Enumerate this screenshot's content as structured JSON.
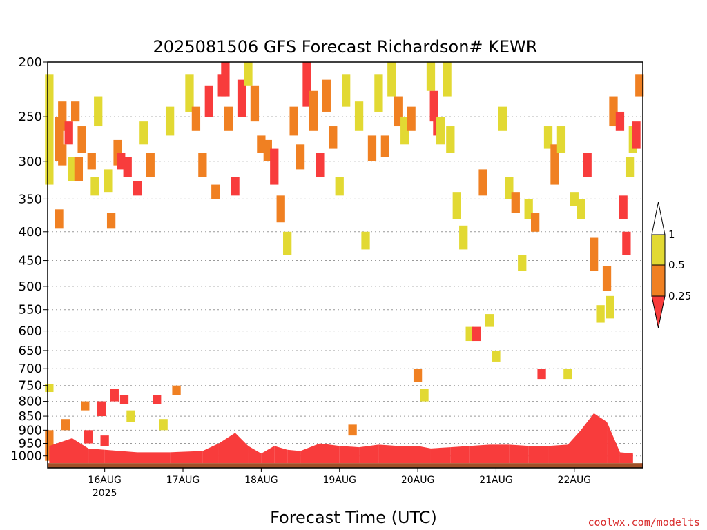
{
  "chart_data": {
    "type": "heatmap",
    "title": "2025081506 GFS Forecast Richardson# KEWR",
    "xlabel": "Forecast Time (UTC)",
    "ylabel": "",
    "y_scale": "log",
    "y_ticks": [
      200,
      250,
      300,
      350,
      400,
      450,
      500,
      550,
      600,
      650,
      700,
      750,
      800,
      850,
      900,
      950,
      1000
    ],
    "ylim": [
      1050,
      200
    ],
    "x_ticks": [
      "16AUG",
      "17AUG",
      "18AUG",
      "19AUG",
      "20AUG",
      "21AUG",
      "22AUG"
    ],
    "x_tick_year": "2025",
    "x_tick_sublabel_index": 0,
    "x_range_hours": [
      -17.5,
      165
    ],
    "grid": true,
    "colorbar": {
      "levels": [
        "1",
        "0.5",
        "0.25"
      ],
      "colors": {
        "over_1": "#ffffff",
        "0.5-1": "#e2d933",
        "0.25-0.5": "#f08022",
        "under_0.25": "#f83c3c"
      }
    },
    "surface_color": "#a05028",
    "value_classes": [
      "0.5-1",
      "0.25-0.5",
      "<0.25"
    ],
    "cells": [
      {
        "t": -17,
        "p": [
          210,
          300
        ],
        "c": "0.5-1"
      },
      {
        "t": -17,
        "p": [
          300,
          330
        ],
        "c": "0.5-1"
      },
      {
        "t": -17,
        "p": [
          745,
          770
        ],
        "c": "0.5-1"
      },
      {
        "t": -17,
        "p": [
          900,
          1020
        ],
        "c": "0.25-0.5"
      },
      {
        "t": -14,
        "p": [
          250,
          300
        ],
        "c": "0.25-0.5"
      },
      {
        "t": -14,
        "p": [
          365,
          395
        ],
        "c": "0.25-0.5"
      },
      {
        "t": -13,
        "p": [
          235,
          265
        ],
        "c": "0.25-0.5"
      },
      {
        "t": -13,
        "p": [
          280,
          305
        ],
        "c": "0.25-0.5"
      },
      {
        "t": -12,
        "p": [
          860,
          900
        ],
        "c": "0.25-0.5"
      },
      {
        "t": -11,
        "p": [
          255,
          280
        ],
        "c": "<0.25"
      },
      {
        "t": -10,
        "p": [
          295,
          325
        ],
        "c": "0.5-1"
      },
      {
        "t": -9,
        "p": [
          235,
          255
        ],
        "c": "0.25-0.5"
      },
      {
        "t": -8,
        "p": [
          295,
          325
        ],
        "c": "0.25-0.5"
      },
      {
        "t": -7,
        "p": [
          260,
          290
        ],
        "c": "0.25-0.5"
      },
      {
        "t": -6,
        "p": [
          800,
          830
        ],
        "c": "0.25-0.5"
      },
      {
        "t": -5,
        "p": [
          900,
          950
        ],
        "c": "<0.25"
      },
      {
        "t": -4,
        "p": [
          290,
          310
        ],
        "c": "0.25-0.5"
      },
      {
        "t": -3,
        "p": [
          320,
          345
        ],
        "c": "0.5-1"
      },
      {
        "t": -2,
        "p": [
          230,
          260
        ],
        "c": "0.5-1"
      },
      {
        "t": -1,
        "p": [
          800,
          850
        ],
        "c": "<0.25"
      },
      {
        "t": 0,
        "p": [
          920,
          960
        ],
        "c": "<0.25"
      },
      {
        "t": 1,
        "p": [
          310,
          340
        ],
        "c": "0.5-1"
      },
      {
        "t": 2,
        "p": [
          370,
          395
        ],
        "c": "0.25-0.5"
      },
      {
        "t": 3,
        "p": [
          760,
          800
        ],
        "c": "<0.25"
      },
      {
        "t": 4,
        "p": [
          275,
          305
        ],
        "c": "0.25-0.5"
      },
      {
        "t": 5,
        "p": [
          290,
          310
        ],
        "c": "<0.25"
      },
      {
        "t": 6,
        "p": [
          780,
          810
        ],
        "c": "<0.25"
      },
      {
        "t": 7,
        "p": [
          295,
          320
        ],
        "c": "<0.25"
      },
      {
        "t": 8,
        "p": [
          830,
          870
        ],
        "c": "0.5-1"
      },
      {
        "t": 10,
        "p": [
          325,
          345
        ],
        "c": "<0.25"
      },
      {
        "t": 12,
        "p": [
          255,
          280
        ],
        "c": "0.5-1"
      },
      {
        "t": 14,
        "p": [
          290,
          320
        ],
        "c": "0.25-0.5"
      },
      {
        "t": 16,
        "p": [
          780,
          810
        ],
        "c": "<0.25"
      },
      {
        "t": 18,
        "p": [
          860,
          900
        ],
        "c": "0.5-1"
      },
      {
        "t": 20,
        "p": [
          240,
          270
        ],
        "c": "0.5-1"
      },
      {
        "t": 22,
        "p": [
          750,
          780
        ],
        "c": "0.25-0.5"
      },
      {
        "t": 26,
        "p": [
          210,
          245
        ],
        "c": "0.5-1"
      },
      {
        "t": 28,
        "p": [
          240,
          265
        ],
        "c": "0.25-0.5"
      },
      {
        "t": 30,
        "p": [
          290,
          320
        ],
        "c": "0.25-0.5"
      },
      {
        "t": 32,
        "p": [
          220,
          250
        ],
        "c": "<0.25"
      },
      {
        "t": 34,
        "p": [
          330,
          350
        ],
        "c": "0.25-0.5"
      },
      {
        "t": 36,
        "p": [
          210,
          230
        ],
        "c": "<0.25"
      },
      {
        "t": 37,
        "p": [
          200,
          230
        ],
        "c": "<0.25"
      },
      {
        "t": 38,
        "p": [
          240,
          265
        ],
        "c": "0.25-0.5"
      },
      {
        "t": 40,
        "p": [
          320,
          345
        ],
        "c": "<0.25"
      },
      {
        "t": 42,
        "p": [
          215,
          250
        ],
        "c": "<0.25"
      },
      {
        "t": 44,
        "p": [
          200,
          220
        ],
        "c": "0.5-1"
      },
      {
        "t": 46,
        "p": [
          220,
          255
        ],
        "c": "0.25-0.5"
      },
      {
        "t": 48,
        "p": [
          270,
          290
        ],
        "c": "0.25-0.5"
      },
      {
        "t": 50,
        "p": [
          275,
          300
        ],
        "c": "0.25-0.5"
      },
      {
        "t": 52,
        "p": [
          285,
          330
        ],
        "c": "<0.25"
      },
      {
        "t": 54,
        "p": [
          345,
          385
        ],
        "c": "0.25-0.5"
      },
      {
        "t": 56,
        "p": [
          400,
          440
        ],
        "c": "0.5-1"
      },
      {
        "t": 58,
        "p": [
          240,
          270
        ],
        "c": "0.25-0.5"
      },
      {
        "t": 60,
        "p": [
          280,
          310
        ],
        "c": "0.25-0.5"
      },
      {
        "t": 62,
        "p": [
          200,
          240
        ],
        "c": "<0.25"
      },
      {
        "t": 64,
        "p": [
          225,
          265
        ],
        "c": "0.25-0.5"
      },
      {
        "t": 66,
        "p": [
          290,
          320
        ],
        "c": "<0.25"
      },
      {
        "t": 68,
        "p": [
          215,
          245
        ],
        "c": "0.25-0.5"
      },
      {
        "t": 70,
        "p": [
          260,
          285
        ],
        "c": "0.25-0.5"
      },
      {
        "t": 72,
        "p": [
          320,
          345
        ],
        "c": "0.5-1"
      },
      {
        "t": 74,
        "p": [
          210,
          240
        ],
        "c": "0.5-1"
      },
      {
        "t": 76,
        "p": [
          880,
          920
        ],
        "c": "0.25-0.5"
      },
      {
        "t": 78,
        "p": [
          235,
          265
        ],
        "c": "0.5-1"
      },
      {
        "t": 80,
        "p": [
          400,
          430
        ],
        "c": "0.5-1"
      },
      {
        "t": 82,
        "p": [
          270,
          300
        ],
        "c": "0.25-0.5"
      },
      {
        "t": 84,
        "p": [
          210,
          245
        ],
        "c": "0.5-1"
      },
      {
        "t": 86,
        "p": [
          270,
          295
        ],
        "c": "0.25-0.5"
      },
      {
        "t": 88,
        "p": [
          200,
          230
        ],
        "c": "0.5-1"
      },
      {
        "t": 90,
        "p": [
          230,
          260
        ],
        "c": "0.25-0.5"
      },
      {
        "t": 92,
        "p": [
          250,
          280
        ],
        "c": "0.5-1"
      },
      {
        "t": 94,
        "p": [
          240,
          265
        ],
        "c": "0.25-0.5"
      },
      {
        "t": 96,
        "p": [
          700,
          740
        ],
        "c": "0.25-0.5"
      },
      {
        "t": 98,
        "p": [
          760,
          800
        ],
        "c": "0.5-1"
      },
      {
        "t": 100,
        "p": [
          200,
          225
        ],
        "c": "0.5-1"
      },
      {
        "t": 101,
        "p": [
          225,
          255
        ],
        "c": "<0.25"
      },
      {
        "t": 102,
        "p": [
          250,
          270
        ],
        "c": "<0.25"
      },
      {
        "t": 103,
        "p": [
          250,
          280
        ],
        "c": "0.5-1"
      },
      {
        "t": 105,
        "p": [
          200,
          230
        ],
        "c": "0.5-1"
      },
      {
        "t": 106,
        "p": [
          260,
          290
        ],
        "c": "0.5-1"
      },
      {
        "t": 108,
        "p": [
          340,
          380
        ],
        "c": "0.5-1"
      },
      {
        "t": 110,
        "p": [
          390,
          430
        ],
        "c": "0.5-1"
      },
      {
        "t": 112,
        "p": [
          590,
          625
        ],
        "c": "0.5-1"
      },
      {
        "t": 114,
        "p": [
          590,
          625
        ],
        "c": "<0.25"
      },
      {
        "t": 116,
        "p": [
          310,
          345
        ],
        "c": "0.25-0.5"
      },
      {
        "t": 118,
        "p": [
          560,
          590
        ],
        "c": "0.5-1"
      },
      {
        "t": 120,
        "p": [
          650,
          680
        ],
        "c": "0.5-1"
      },
      {
        "t": 122,
        "p": [
          240,
          265
        ],
        "c": "0.5-1"
      },
      {
        "t": 124,
        "p": [
          320,
          350
        ],
        "c": "0.5-1"
      },
      {
        "t": 126,
        "p": [
          340,
          370
        ],
        "c": "0.25-0.5"
      },
      {
        "t": 128,
        "p": [
          440,
          470
        ],
        "c": "0.5-1"
      },
      {
        "t": 130,
        "p": [
          350,
          380
        ],
        "c": "0.5-1"
      },
      {
        "t": 132,
        "p": [
          370,
          400
        ],
        "c": "0.25-0.5"
      },
      {
        "t": 134,
        "p": [
          700,
          730
        ],
        "c": "<0.25"
      },
      {
        "t": 136,
        "p": [
          260,
          285
        ],
        "c": "0.5-1"
      },
      {
        "t": 138,
        "p": [
          280,
          330
        ],
        "c": "0.25-0.5"
      },
      {
        "t": 140,
        "p": [
          260,
          290
        ],
        "c": "0.5-1"
      },
      {
        "t": 142,
        "p": [
          700,
          730
        ],
        "c": "0.5-1"
      },
      {
        "t": 144,
        "p": [
          340,
          360
        ],
        "c": "0.5-1"
      },
      {
        "t": 146,
        "p": [
          350,
          380
        ],
        "c": "0.5-1"
      },
      {
        "t": 148,
        "p": [
          290,
          320
        ],
        "c": "<0.25"
      },
      {
        "t": 150,
        "p": [
          410,
          470
        ],
        "c": "0.25-0.5"
      },
      {
        "t": 152,
        "p": [
          540,
          580
        ],
        "c": "0.5-1"
      },
      {
        "t": 154,
        "p": [
          460,
          510
        ],
        "c": "0.25-0.5"
      },
      {
        "t": 155,
        "p": [
          520,
          570
        ],
        "c": "0.5-1"
      },
      {
        "t": 156,
        "p": [
          230,
          260
        ],
        "c": "0.25-0.5"
      },
      {
        "t": 158,
        "p": [
          245,
          265
        ],
        "c": "<0.25"
      },
      {
        "t": 159,
        "p": [
          345,
          380
        ],
        "c": "<0.25"
      },
      {
        "t": 160,
        "p": [
          400,
          440
        ],
        "c": "<0.25"
      },
      {
        "t": 161,
        "p": [
          295,
          320
        ],
        "c": "0.5-1"
      },
      {
        "t": 162,
        "p": [
          260,
          290
        ],
        "c": "0.5-1"
      },
      {
        "t": 163,
        "p": [
          255,
          285
        ],
        "c": "<0.25"
      },
      {
        "t": 164,
        "p": [
          210,
          230
        ],
        "c": "0.25-0.5"
      }
    ],
    "low_level": [
      {
        "t": -17,
        "top": 960,
        "c": "<0.25"
      },
      {
        "t": -10,
        "top": 930,
        "c": "<0.25"
      },
      {
        "t": -5,
        "top": 970,
        "c": "<0.25"
      },
      {
        "t": 0,
        "top": 975,
        "c": "<0.25"
      },
      {
        "t": 10,
        "top": 985,
        "c": "<0.25"
      },
      {
        "t": 20,
        "top": 985,
        "c": "<0.25"
      },
      {
        "t": 30,
        "top": 980,
        "c": "<0.25"
      },
      {
        "t": 35,
        "top": 950,
        "c": "<0.25"
      },
      {
        "t": 40,
        "top": 910,
        "c": "<0.25"
      },
      {
        "t": 44,
        "top": 960,
        "c": "<0.25"
      },
      {
        "t": 48,
        "top": 990,
        "c": "<0.25"
      },
      {
        "t": 52,
        "top": 960,
        "c": "<0.25"
      },
      {
        "t": 56,
        "top": 975,
        "c": "<0.25"
      },
      {
        "t": 60,
        "top": 980,
        "c": "<0.25"
      },
      {
        "t": 66,
        "top": 950,
        "c": "<0.25"
      },
      {
        "t": 72,
        "top": 960,
        "c": "<0.25"
      },
      {
        "t": 78,
        "top": 965,
        "c": "<0.25"
      },
      {
        "t": 84,
        "top": 955,
        "c": "<0.25"
      },
      {
        "t": 90,
        "top": 960,
        "c": "<0.25"
      },
      {
        "t": 96,
        "top": 960,
        "c": "<0.25"
      },
      {
        "t": 100,
        "top": 970,
        "c": "<0.25"
      },
      {
        "t": 106,
        "top": 965,
        "c": "<0.25"
      },
      {
        "t": 112,
        "top": 960,
        "c": "<0.25"
      },
      {
        "t": 118,
        "top": 955,
        "c": "<0.25"
      },
      {
        "t": 124,
        "top": 955,
        "c": "<0.25"
      },
      {
        "t": 130,
        "top": 960,
        "c": "<0.25"
      },
      {
        "t": 136,
        "top": 960,
        "c": "<0.25"
      },
      {
        "t": 142,
        "top": 955,
        "c": "<0.25"
      },
      {
        "t": 146,
        "top": 900,
        "c": "<0.25"
      },
      {
        "t": 150,
        "top": 840,
        "c": "<0.25"
      },
      {
        "t": 154,
        "top": 870,
        "c": "<0.25"
      },
      {
        "t": 158,
        "top": 985,
        "c": "<0.25"
      },
      {
        "t": 162,
        "top": 990,
        "c": "<0.25"
      }
    ]
  },
  "credit": "coolwx.com/modelts"
}
